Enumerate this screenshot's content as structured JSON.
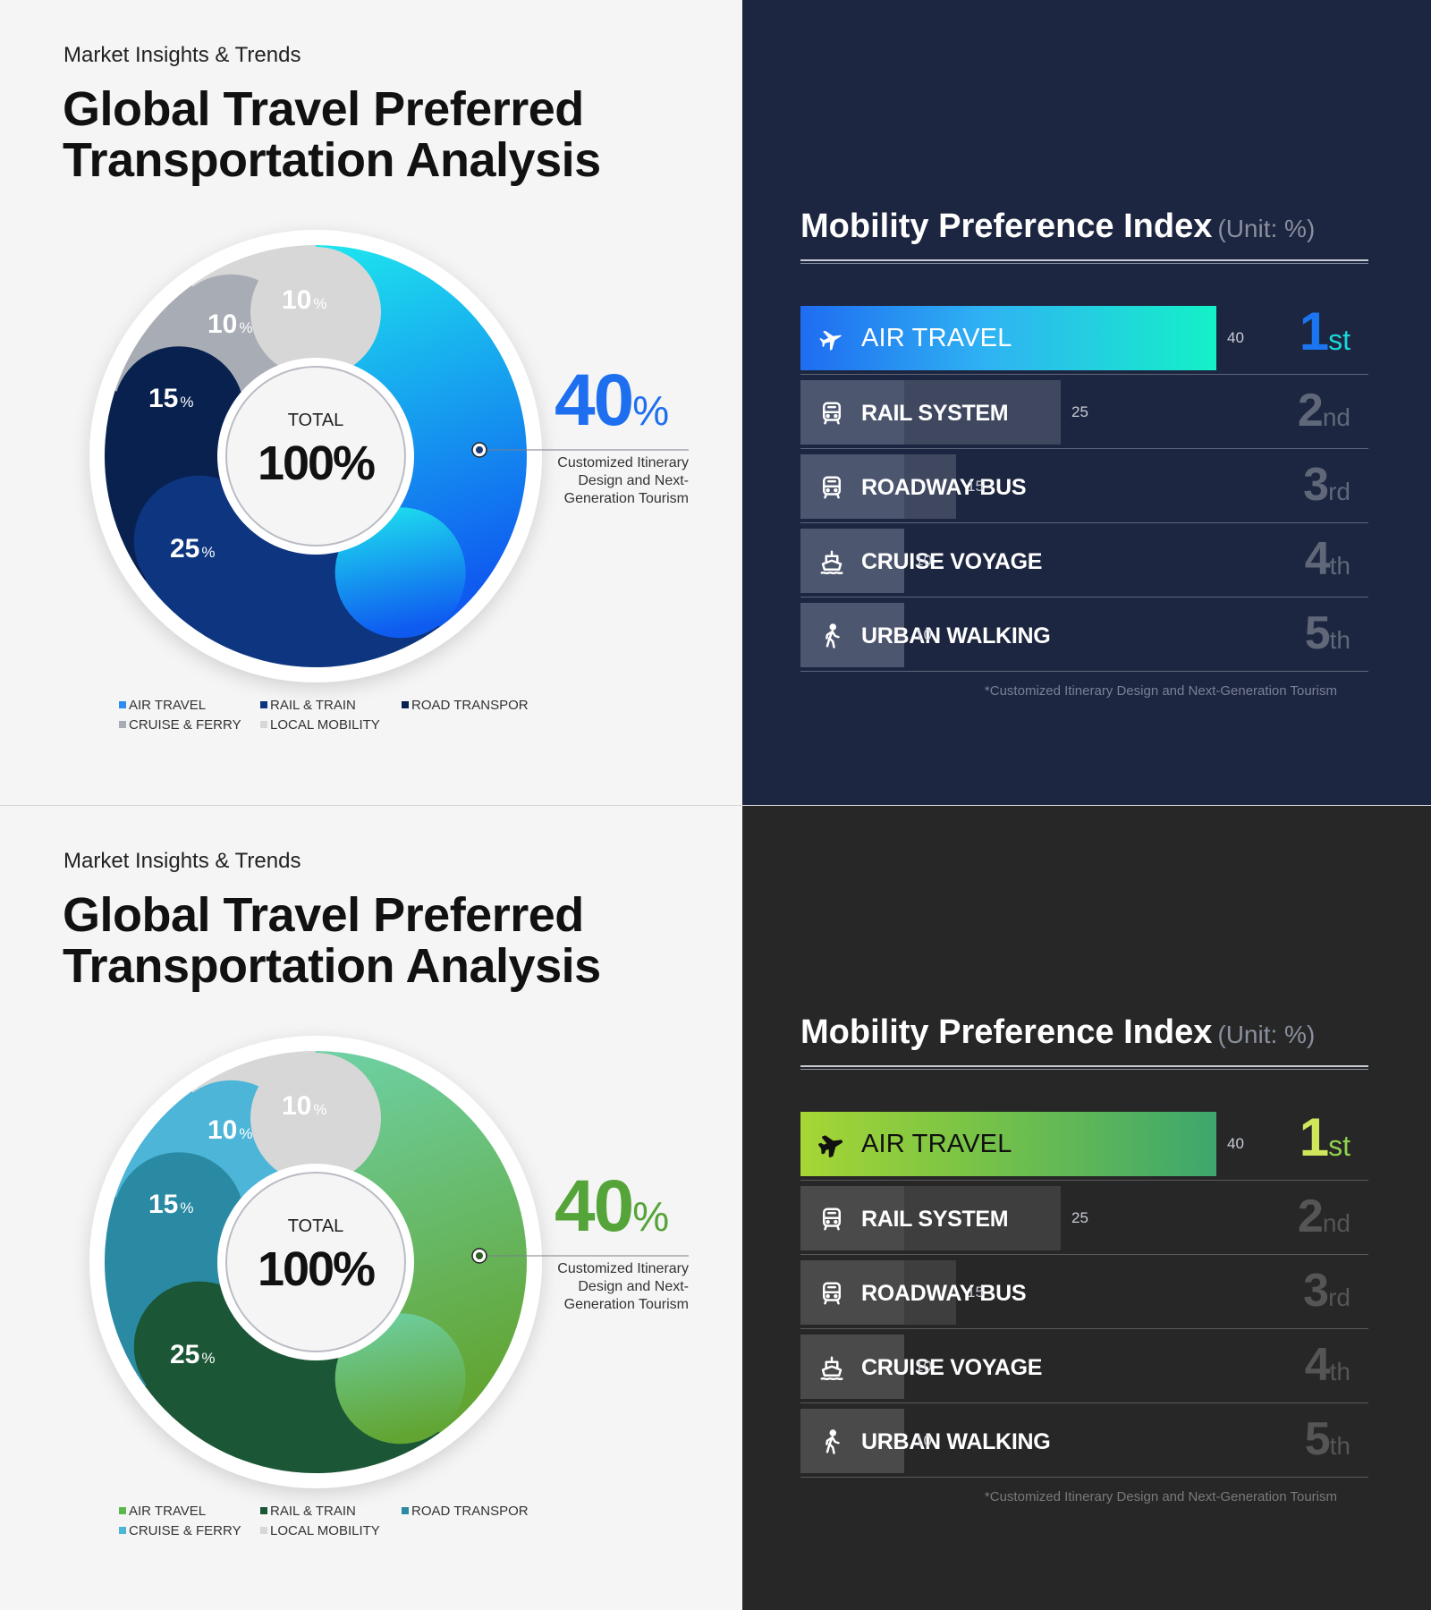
{
  "panels": [
    {
      "theme": "blue",
      "left": {
        "kicker": "Market Insights & Trends",
        "title_line1": "Global Travel Preferred",
        "title_line2": "Transportation Analysis",
        "center_label": "TOTAL",
        "center_value": "100%",
        "callout_value": "40",
        "callout_unit": "%",
        "callout_text": [
          "Customized Itinerary",
          "Design and Next-",
          "Generation Tourism"
        ]
      },
      "right": {
        "title": "Mobility Preference Index",
        "unit": "(Unit: %)",
        "rows": [
          {
            "icon": "airplane-icon",
            "label": "AIR TRAVEL",
            "value": "40",
            "rank_num": "1",
            "rank_suffix": "st"
          },
          {
            "icon": "train-icon",
            "label": "RAIL SYSTEM",
            "value": "25",
            "rank_num": "2",
            "rank_suffix": "nd"
          },
          {
            "icon": "bus-icon",
            "label": "ROADWAY BUS",
            "value": "15",
            "rank_num": "3",
            "rank_suffix": "rd"
          },
          {
            "icon": "ship-icon",
            "label": "CRUISE VOYAGE",
            "value": "10",
            "rank_num": "4",
            "rank_suffix": "th"
          },
          {
            "icon": "walking-person-icon",
            "label": "URBAN WALKING",
            "value": "10",
            "rank_num": "5",
            "rank_suffix": "th"
          }
        ],
        "footnote": "*Customized Itinerary Design and Next-Generation Tourism"
      },
      "colors": {
        "air": [
          "#1ee6ee",
          "#0f5bf0"
        ],
        "rail": "#0d3580",
        "road": "#08214f",
        "cruise": "#a8acb5",
        "local": "#d7d7d7",
        "legend": [
          "#2e8cf2",
          "#0d3580",
          "#08214f",
          "#a8acb5",
          "#d7d7d7"
        ]
      }
    },
    {
      "theme": "green",
      "left": {
        "kicker": "Market Insights & Trends",
        "title_line1": "Global Travel Preferred",
        "title_line2": "Transportation Analysis",
        "center_label": "TOTAL",
        "center_value": "100%",
        "callout_value": "40",
        "callout_unit": "%",
        "callout_text": [
          "Customized Itinerary",
          "Design and Next-",
          "Generation Tourism"
        ]
      },
      "right": {
        "title": "Mobility Preference Index",
        "unit": "(Unit: %)",
        "rows": [
          {
            "icon": "airplane-icon",
            "label": "AIR TRAVEL",
            "value": "40",
            "rank_num": "1",
            "rank_suffix": "st"
          },
          {
            "icon": "train-icon",
            "label": "RAIL SYSTEM",
            "value": "25",
            "rank_num": "2",
            "rank_suffix": "nd"
          },
          {
            "icon": "bus-icon",
            "label": "ROADWAY BUS",
            "value": "15",
            "rank_num": "3",
            "rank_suffix": "rd"
          },
          {
            "icon": "ship-icon",
            "label": "CRUISE VOYAGE",
            "value": "10",
            "rank_num": "4",
            "rank_suffix": "th"
          },
          {
            "icon": "walking-person-icon",
            "label": "URBAN WALKING",
            "value": "10",
            "rank_num": "5",
            "rank_suffix": "th"
          }
        ],
        "footnote": "*Customized Itinerary Design and Next-Generation Tourism"
      },
      "colors": {
        "air": [
          "#6ed1a6",
          "#62a533"
        ],
        "rail": "#1b5636",
        "road": "#2a8aa3",
        "cruise": "#4cb5d8",
        "local": "#d7d7d7",
        "legend": [
          "#5cb84a",
          "#1b5636",
          "#2a8aa3",
          "#4cb5d8",
          "#d7d7d7"
        ]
      }
    }
  ],
  "chart_data": [
    {
      "type": "pie",
      "categories": [
        "AIR TRAVEL",
        "RAIL & TRAIN",
        "ROAD TRANSPOR",
        "CRUISE & FERRY",
        "LOCAL MOBILITY"
      ],
      "values": [
        40,
        25,
        15,
        10,
        10
      ],
      "value_labels": [
        "40%",
        "25%",
        "15%",
        "10%",
        "10%"
      ],
      "legend_placement": "bottom"
    },
    {
      "type": "bar",
      "categories": [
        "AIR TRAVEL",
        "RAIL SYSTEM",
        "ROADWAY BUS",
        "CRUISE VOYAGE",
        "URBAN WALKING"
      ],
      "values": [
        40,
        25,
        15,
        10,
        10
      ],
      "orientation": "horizontal",
      "title": "Mobility Preference Index",
      "unit": "(Unit: %)"
    },
    {
      "type": "pie",
      "categories": [
        "AIR TRAVEL",
        "RAIL & TRAIN",
        "ROAD TRANSPOR",
        "CRUISE & FERRY",
        "LOCAL MOBILITY"
      ],
      "values": [
        40,
        25,
        15,
        10,
        10
      ],
      "value_labels": [
        "40%",
        "25%",
        "15%",
        "10%",
        "10%"
      ],
      "legend_placement": "bottom"
    },
    {
      "type": "bar",
      "categories": [
        "AIR TRAVEL",
        "RAIL SYSTEM",
        "ROADWAY BUS",
        "CRUISE VOYAGE",
        "URBAN WALKING"
      ],
      "values": [
        40,
        25,
        15,
        10,
        10
      ],
      "orientation": "horizontal",
      "title": "Mobility Preference Index",
      "unit": "(Unit: %)"
    }
  ]
}
